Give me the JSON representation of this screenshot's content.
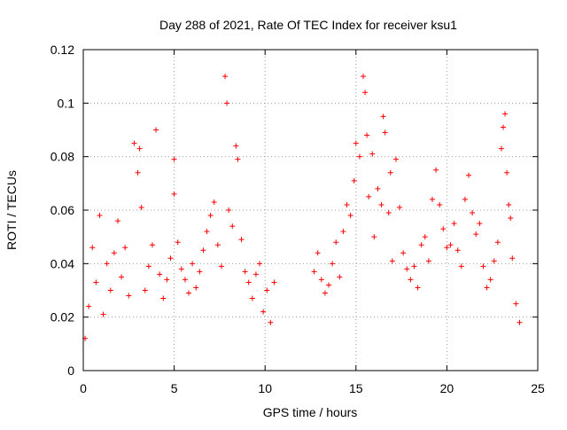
{
  "chart_data": {
    "type": "scatter",
    "title": "Day 288 of 2021, Rate Of TEC Index for receiver ksu1",
    "xlabel": "GPS time / hours",
    "ylabel": "ROTI / TECUs",
    "xlim": [
      0,
      25
    ],
    "ylim": [
      0,
      0.12
    ],
    "x_ticks": [
      "0",
      "5",
      "10",
      "15",
      "20",
      "25"
    ],
    "y_ticks": [
      "0",
      "0.02",
      "0.04",
      "0.06",
      "0.08",
      "0.1",
      "0.12"
    ],
    "grid": true,
    "marker": "plus",
    "color": "#ff0000",
    "points": [
      [
        0.1,
        0.012
      ],
      [
        0.3,
        0.024
      ],
      [
        0.5,
        0.046
      ],
      [
        0.7,
        0.033
      ],
      [
        0.9,
        0.058
      ],
      [
        1.1,
        0.021
      ],
      [
        1.3,
        0.04
      ],
      [
        1.5,
        0.03
      ],
      [
        1.7,
        0.044
      ],
      [
        1.9,
        0.056
      ],
      [
        2.1,
        0.035
      ],
      [
        2.3,
        0.046
      ],
      [
        2.5,
        0.028
      ],
      [
        2.8,
        0.085
      ],
      [
        3.0,
        0.074
      ],
      [
        3.1,
        0.083
      ],
      [
        3.2,
        0.061
      ],
      [
        3.4,
        0.03
      ],
      [
        3.6,
        0.039
      ],
      [
        3.8,
        0.047
      ],
      [
        4.0,
        0.09
      ],
      [
        4.2,
        0.036
      ],
      [
        4.4,
        0.027
      ],
      [
        4.6,
        0.034
      ],
      [
        4.8,
        0.042
      ],
      [
        5.0,
        0.079
      ],
      [
        5.0,
        0.066
      ],
      [
        5.2,
        0.048
      ],
      [
        5.4,
        0.038
      ],
      [
        5.6,
        0.034
      ],
      [
        5.8,
        0.029
      ],
      [
        6.0,
        0.04
      ],
      [
        6.2,
        0.031
      ],
      [
        6.4,
        0.037
      ],
      [
        6.6,
        0.045
      ],
      [
        6.8,
        0.052
      ],
      [
        7.0,
        0.058
      ],
      [
        7.2,
        0.063
      ],
      [
        7.4,
        0.047
      ],
      [
        7.6,
        0.039
      ],
      [
        7.8,
        0.11
      ],
      [
        7.9,
        0.1
      ],
      [
        8.0,
        0.06
      ],
      [
        8.2,
        0.054
      ],
      [
        8.4,
        0.084
      ],
      [
        8.5,
        0.079
      ],
      [
        8.7,
        0.049
      ],
      [
        8.9,
        0.037
      ],
      [
        9.1,
        0.033
      ],
      [
        9.3,
        0.027
      ],
      [
        9.5,
        0.036
      ],
      [
        9.7,
        0.04
      ],
      [
        9.9,
        0.022
      ],
      [
        10.1,
        0.03
      ],
      [
        10.3,
        0.018
      ],
      [
        10.5,
        0.033
      ],
      [
        12.7,
        0.037
      ],
      [
        12.9,
        0.044
      ],
      [
        13.1,
        0.034
      ],
      [
        13.3,
        0.029
      ],
      [
        13.5,
        0.032
      ],
      [
        13.7,
        0.04
      ],
      [
        13.9,
        0.048
      ],
      [
        14.1,
        0.035
      ],
      [
        14.3,
        0.052
      ],
      [
        14.5,
        0.062
      ],
      [
        14.7,
        0.058
      ],
      [
        14.9,
        0.071
      ],
      [
        15.0,
        0.085
      ],
      [
        15.2,
        0.08
      ],
      [
        15.4,
        0.11
      ],
      [
        15.5,
        0.104
      ],
      [
        15.6,
        0.088
      ],
      [
        15.7,
        0.065
      ],
      [
        15.9,
        0.081
      ],
      [
        16.0,
        0.05
      ],
      [
        16.2,
        0.068
      ],
      [
        16.4,
        0.062
      ],
      [
        16.5,
        0.095
      ],
      [
        16.6,
        0.089
      ],
      [
        16.8,
        0.059
      ],
      [
        16.9,
        0.074
      ],
      [
        17.0,
        0.041
      ],
      [
        17.2,
        0.079
      ],
      [
        17.4,
        0.061
      ],
      [
        17.6,
        0.044
      ],
      [
        17.8,
        0.038
      ],
      [
        18.0,
        0.034
      ],
      [
        18.2,
        0.039
      ],
      [
        18.4,
        0.031
      ],
      [
        18.6,
        0.047
      ],
      [
        18.8,
        0.05
      ],
      [
        19.0,
        0.041
      ],
      [
        19.2,
        0.064
      ],
      [
        19.4,
        0.075
      ],
      [
        19.6,
        0.062
      ],
      [
        19.8,
        0.053
      ],
      [
        20.0,
        0.046
      ],
      [
        20.2,
        0.047
      ],
      [
        20.4,
        0.055
      ],
      [
        20.6,
        0.045
      ],
      [
        20.8,
        0.039
      ],
      [
        21.0,
        0.064
      ],
      [
        21.2,
        0.073
      ],
      [
        21.4,
        0.059
      ],
      [
        21.6,
        0.051
      ],
      [
        21.8,
        0.055
      ],
      [
        22.0,
        0.039
      ],
      [
        22.2,
        0.031
      ],
      [
        22.4,
        0.034
      ],
      [
        22.6,
        0.041
      ],
      [
        22.8,
        0.048
      ],
      [
        23.0,
        0.083
      ],
      [
        23.1,
        0.091
      ],
      [
        23.2,
        0.096
      ],
      [
        23.3,
        0.074
      ],
      [
        23.4,
        0.062
      ],
      [
        23.5,
        0.057
      ],
      [
        23.6,
        0.042
      ],
      [
        23.8,
        0.025
      ],
      [
        24.0,
        0.018
      ]
    ]
  }
}
